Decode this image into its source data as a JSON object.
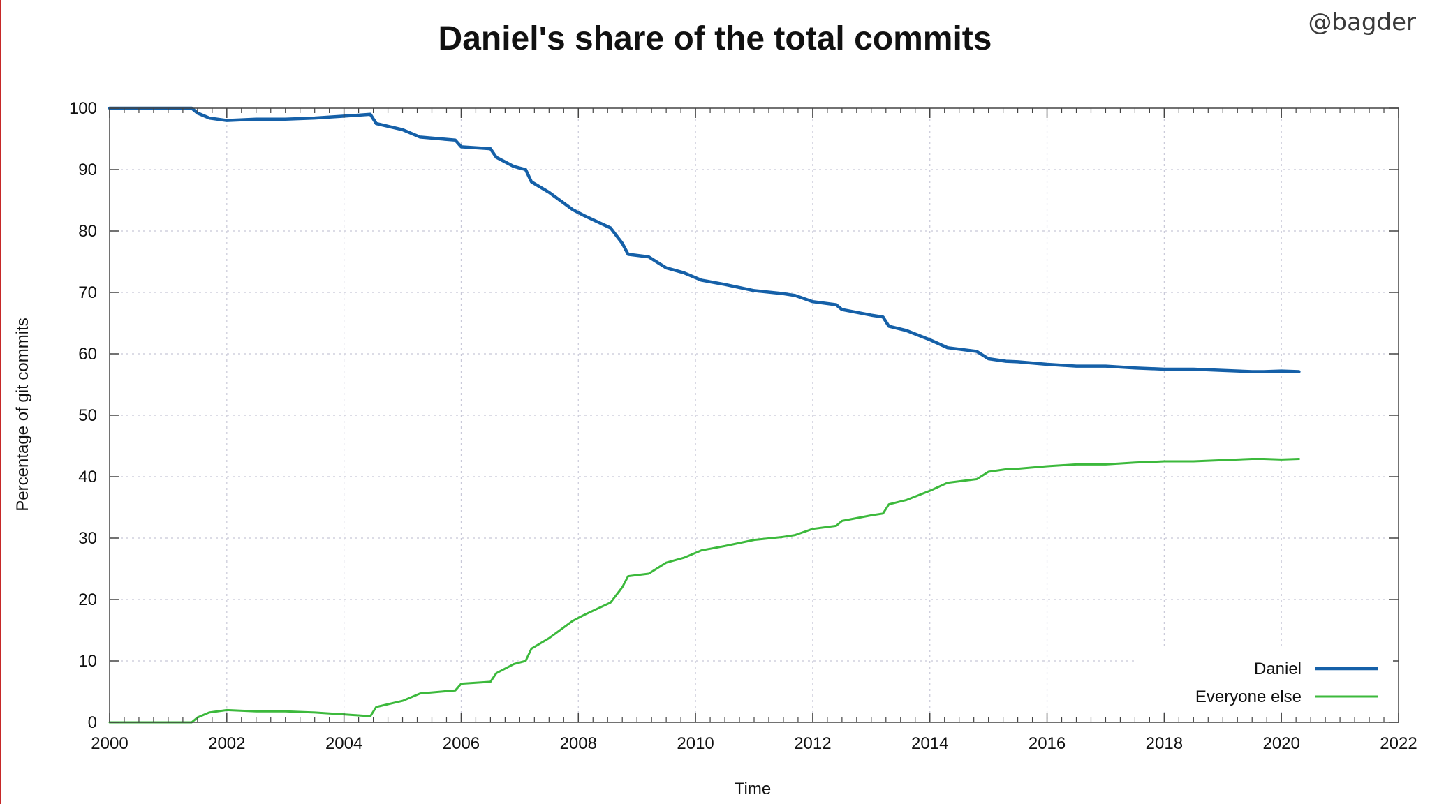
{
  "watermark": "@bagder",
  "colors": {
    "daniel": "#1560a8",
    "everyone_else": "#3cb93c",
    "grid": "#c8c8d8",
    "axis": "#444444"
  },
  "chart_data": {
    "type": "line",
    "title": "Daniel's share of the total commits",
    "xlabel": "Time",
    "ylabel": "Percentage of git commits",
    "xlim": [
      2000,
      2022
    ],
    "ylim": [
      0,
      100
    ],
    "xticks": [
      "2000",
      "2002",
      "2004",
      "2006",
      "2008",
      "2010",
      "2012",
      "2014",
      "2016",
      "2018",
      "2020",
      "2022"
    ],
    "yticks": [
      "0",
      "10",
      "20",
      "30",
      "40",
      "50",
      "60",
      "70",
      "80",
      "90",
      "100"
    ],
    "grid": true,
    "legend_position": "bottom-right",
    "series": [
      {
        "name": "Daniel",
        "color": "#1560a8",
        "x": [
          2000.0,
          2001.4,
          2001.5,
          2001.7,
          2002.0,
          2002.5,
          2003.0,
          2003.5,
          2004.0,
          2004.45,
          2004.55,
          2005.0,
          2005.3,
          2005.9,
          2006.0,
          2006.5,
          2006.6,
          2006.9,
          2007.1,
          2007.2,
          2007.5,
          2007.9,
          2008.1,
          2008.55,
          2008.75,
          2008.85,
          2009.2,
          2009.5,
          2009.8,
          2010.1,
          2010.5,
          2011.0,
          2011.5,
          2011.7,
          2012.0,
          2012.4,
          2012.5,
          2013.0,
          2013.2,
          2013.3,
          2013.6,
          2014.0,
          2014.3,
          2014.8,
          2015.0,
          2015.3,
          2015.5,
          2016.0,
          2016.5,
          2017.0,
          2017.5,
          2018.0,
          2018.5,
          2019.0,
          2019.5,
          2019.7,
          2020.0,
          2020.3
        ],
        "y": [
          100.0,
          100.0,
          99.2,
          98.4,
          98.0,
          98.2,
          98.2,
          98.4,
          98.7,
          99.0,
          97.5,
          96.5,
          95.3,
          94.8,
          93.7,
          93.4,
          92.0,
          90.5,
          90.0,
          88.0,
          86.3,
          83.5,
          82.5,
          80.5,
          78.0,
          76.2,
          75.8,
          74.0,
          73.2,
          72.0,
          71.3,
          70.3,
          69.8,
          69.5,
          68.5,
          68.0,
          67.2,
          66.3,
          66.0,
          64.5,
          63.8,
          62.3,
          61.0,
          60.4,
          59.2,
          58.8,
          58.7,
          58.3,
          58.0,
          58.0,
          57.7,
          57.5,
          57.5,
          57.3,
          57.1,
          57.1,
          57.2,
          57.1
        ]
      },
      {
        "name": "Everyone else",
        "color": "#3cb93c",
        "x": [
          2000.0,
          2001.4,
          2001.5,
          2001.7,
          2002.0,
          2002.5,
          2003.0,
          2003.5,
          2004.0,
          2004.45,
          2004.55,
          2005.0,
          2005.3,
          2005.9,
          2006.0,
          2006.5,
          2006.6,
          2006.9,
          2007.1,
          2007.2,
          2007.5,
          2007.9,
          2008.1,
          2008.55,
          2008.75,
          2008.85,
          2009.2,
          2009.5,
          2009.8,
          2010.1,
          2010.5,
          2011.0,
          2011.5,
          2011.7,
          2012.0,
          2012.4,
          2012.5,
          2013.0,
          2013.2,
          2013.3,
          2013.6,
          2014.0,
          2014.3,
          2014.8,
          2015.0,
          2015.3,
          2015.5,
          2016.0,
          2016.5,
          2017.0,
          2017.5,
          2018.0,
          2018.5,
          2019.0,
          2019.5,
          2019.7,
          2020.0,
          2020.3
        ],
        "y": [
          0.0,
          0.0,
          0.8,
          1.6,
          2.0,
          1.8,
          1.8,
          1.6,
          1.3,
          1.0,
          2.5,
          3.5,
          4.7,
          5.2,
          6.3,
          6.6,
          8.0,
          9.5,
          10.0,
          12.0,
          13.7,
          16.5,
          17.5,
          19.5,
          22.0,
          23.8,
          24.2,
          26.0,
          26.8,
          28.0,
          28.7,
          29.7,
          30.2,
          30.5,
          31.5,
          32.0,
          32.8,
          33.7,
          34.0,
          35.5,
          36.2,
          37.7,
          39.0,
          39.6,
          40.8,
          41.2,
          41.3,
          41.7,
          42.0,
          42.0,
          42.3,
          42.5,
          42.5,
          42.7,
          42.9,
          42.9,
          42.8,
          42.9
        ]
      }
    ]
  }
}
